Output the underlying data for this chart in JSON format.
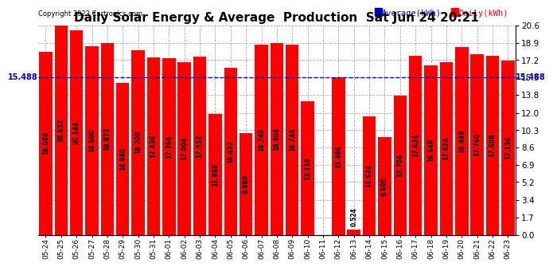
{
  "title": "Daily Solar Energy & Average  Production  Sat Jun 24 20:21",
  "copyright": "Copyright 2023 Cartronics.com",
  "categories": [
    "05-24",
    "05-25",
    "05-26",
    "05-27",
    "05-28",
    "05-29",
    "05-30",
    "05-31",
    "06-01",
    "06-02",
    "06-03",
    "06-04",
    "06-05",
    "06-06",
    "06-07",
    "06-08",
    "06-09",
    "06-10",
    "06-11",
    "06-12",
    "06-13",
    "06-14",
    "06-15",
    "06-16",
    "06-17",
    "06-18",
    "06-19",
    "06-20",
    "06-21",
    "06-22",
    "06-23"
  ],
  "values": [
    18.04,
    20.632,
    20.144,
    18.6,
    18.872,
    14.98,
    18.2,
    17.436,
    17.368,
    17.004,
    17.532,
    11.888,
    16.432,
    9.98,
    18.74,
    18.904,
    18.744,
    13.116,
    0.0,
    15.496,
    0.524,
    11.624,
    9.6,
    13.704,
    17.624,
    16.648,
    17.024,
    18.488,
    17.76,
    17.608,
    17.136
  ],
  "average": 15.488,
  "bar_color": "#ff0000",
  "average_color": "#0000bb",
  "average_label": "Average(kWh)",
  "daily_label": "Daily(kWh)",
  "left_label_avg": "15.488",
  "right_label_avg": "15.488",
  "ylim": [
    0.0,
    20.6
  ],
  "yticks": [
    0.0,
    1.7,
    3.4,
    5.2,
    6.9,
    8.6,
    10.3,
    12.0,
    13.8,
    15.5,
    17.2,
    18.9,
    20.6
  ],
  "background_color": "#ffffff",
  "grid_color": "#aaaaaa",
  "title_fontsize": 11,
  "bar_label_fontsize": 5.5,
  "tick_fontsize": 7,
  "copyright_fontsize": 6
}
